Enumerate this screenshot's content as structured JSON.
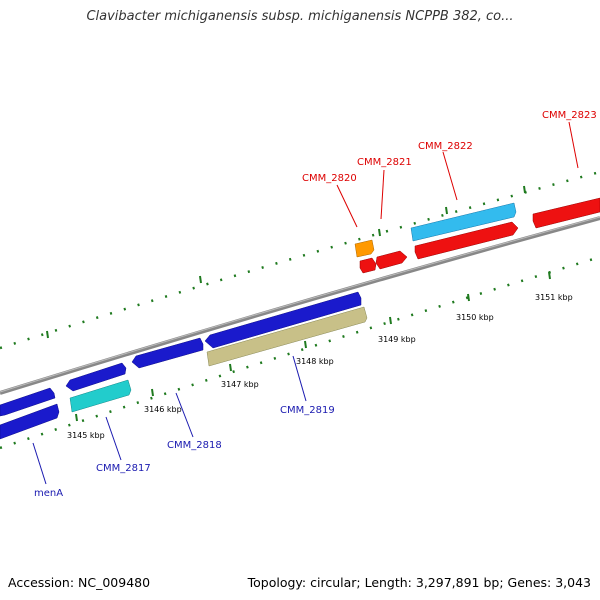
{
  "title": "Clavibacter michiganensis subsp. michiganensis NCPPB 382, co...",
  "footer": {
    "accession": "Accession: NC_009480",
    "summary": "Topology: circular; Length: 3,297,891 bp; Genes: 3,043"
  },
  "colors": {
    "backbone": "#888888",
    "tick": "#1f7a1f",
    "blue_gene": "#1a1acc",
    "cyan_gene": "#22cccc",
    "tan_gene": "#c8c088",
    "red_gene": "#ee1111",
    "orange_gene": "#ff9900",
    "sky_gene": "#33bbee",
    "label_blue": "#1a1ab0",
    "label_red": "#dd0000"
  },
  "kbp_labels": [
    "3145 kbp",
    "3146 kbp",
    "3147 kbp",
    "3148 kbp",
    "3149 kbp",
    "3150 kbp",
    "3151 kbp"
  ],
  "gene_labels": {
    "menA": "menA",
    "cmm2817": "CMM_2817",
    "cmm2818": "CMM_2818",
    "cmm2819": "CMM_2819",
    "cmm2820": "CMM_2820",
    "cmm2821": "CMM_2821",
    "cmm2822": "CMM_2822",
    "cmm2823": "CMM_2823"
  }
}
